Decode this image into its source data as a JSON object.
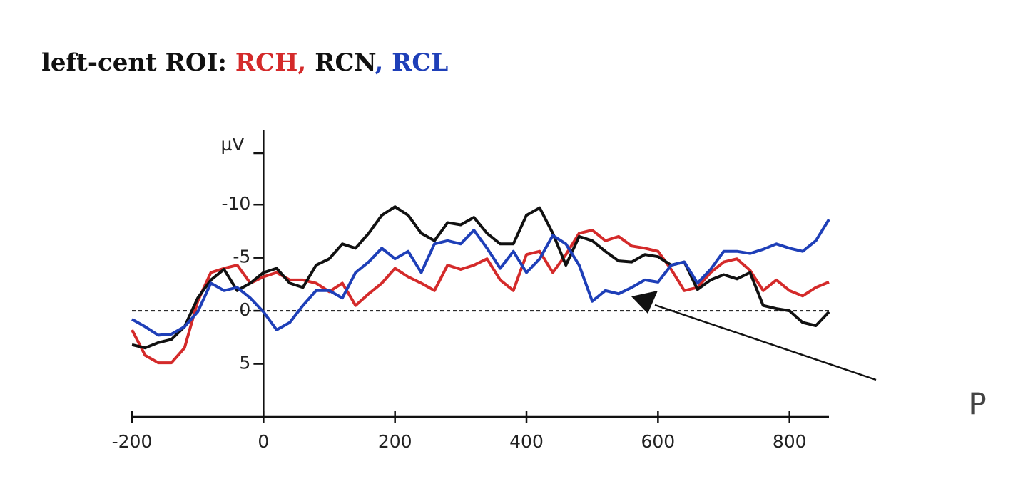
{
  "chart_data": {
    "type": "line",
    "title_parts": [
      {
        "text": "left-cent ROI:",
        "color": "#111111"
      },
      {
        "text": "RCH,",
        "color": "#d42a2a"
      },
      {
        "text": "RCN",
        "color": "#111111"
      },
      {
        "text": ", RCL",
        "color": "#1e3fb8"
      }
    ],
    "y_label": "µV",
    "annotation": "P",
    "x": [
      -200,
      -180,
      -160,
      -140,
      -120,
      -100,
      -80,
      -60,
      -40,
      -20,
      0,
      20,
      40,
      60,
      80,
      100,
      120,
      140,
      160,
      180,
      200,
      220,
      240,
      260,
      280,
      300,
      320,
      340,
      360,
      380,
      400,
      420,
      440,
      460,
      480,
      500,
      520,
      540,
      560,
      580,
      600,
      620,
      640,
      660,
      680,
      700,
      720,
      740,
      760,
      780,
      800,
      820,
      840,
      860
    ],
    "series": [
      {
        "color": "#d42a2a",
        "values": [
          1.8,
          4.2,
          4.9,
          4.9,
          3.5,
          -0.9,
          -3.6,
          -4,
          -4.3,
          -2.6,
          -3.2,
          -3.6,
          -2.9,
          -2.9,
          -2.6,
          -1.8,
          -2.6,
          -0.5,
          -1.6,
          -2.6,
          -4,
          -3.2,
          -2.6,
          -1.9,
          -4.3,
          -3.9,
          -4.3,
          -4.9,
          -2.9,
          -1.9,
          -5.3,
          -5.6,
          -3.6,
          -5.3,
          -7.3,
          -7.6,
          -6.6,
          -7,
          -6.1,
          -5.9,
          -5.6,
          -3.9,
          -1.9,
          -2.2,
          -3.6,
          -4.6,
          -4.9,
          -3.8,
          -1.9,
          -2.9,
          -1.9,
          -1.4,
          -2.2,
          -2.7
        ]
      },
      {
        "color": "#111111",
        "values": [
          3.2,
          3.5,
          3,
          2.7,
          1.5,
          -1.2,
          -2.9,
          -3.9,
          -1.9,
          -2.6,
          -3.6,
          -4,
          -2.6,
          -2.2,
          -4.3,
          -4.9,
          -6.3,
          -5.9,
          -7.3,
          -9,
          -9.8,
          -9,
          -7.3,
          -6.6,
          -8.3,
          -8.1,
          -8.8,
          -7.3,
          -6.3,
          -6.3,
          -9,
          -9.7,
          -7.3,
          -4.3,
          -7,
          -6.6,
          -5.6,
          -4.7,
          -4.6,
          -5.3,
          -5.1,
          -4.3,
          -4.6,
          -2,
          -2.9,
          -3.4,
          -3,
          -3.6,
          -0.5,
          -0.2,
          0,
          1.1,
          1.4,
          0.1
        ]
      },
      {
        "color": "#1e3fb8",
        "values": [
          0.8,
          1.5,
          2.3,
          2.2,
          1.5,
          0.1,
          -2.6,
          -1.9,
          -2.2,
          -1.2,
          0.1,
          1.8,
          1.1,
          -0.5,
          -1.9,
          -1.9,
          -1.2,
          -3.6,
          -4.6,
          -5.9,
          -4.9,
          -5.6,
          -3.6,
          -6.3,
          -6.6,
          -6.3,
          -7.6,
          -5.9,
          -4,
          -5.6,
          -3.6,
          -4.9,
          -7.1,
          -6.3,
          -4.3,
          -0.9,
          -1.9,
          -1.6,
          -2.2,
          -2.9,
          -2.7,
          -4.3,
          -4.6,
          -2.6,
          -3.9,
          -5.6,
          -5.6,
          -5.4,
          -5.8,
          -6.3,
          -5.9,
          -5.6,
          -6.6,
          -8.6
        ]
      }
    ],
    "xlim": [
      -200,
      860
    ],
    "xticks": [
      -200,
      0,
      200,
      400,
      600,
      800
    ],
    "ylim": [
      10,
      -17
    ],
    "yticks": [
      -10,
      -5,
      0,
      5
    ],
    "zero_line": true
  }
}
